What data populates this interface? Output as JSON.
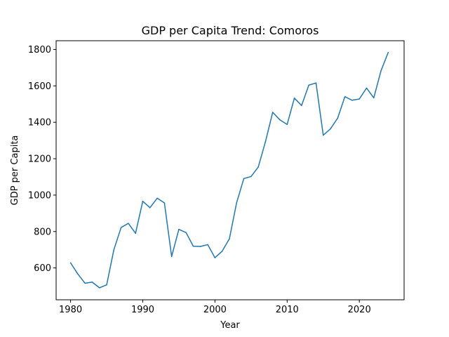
{
  "chart_data": {
    "type": "line",
    "title": "GDP per Capita Trend: Comoros",
    "xlabel": "Year",
    "ylabel": "GDP per Capita",
    "xlim": [
      1978,
      2026.2
    ],
    "ylim": [
      425,
      1848
    ],
    "xticks": [
      "1980",
      "1990",
      "2000",
      "2010",
      "2020"
    ],
    "yticks": [
      "600",
      "800",
      "1000",
      "1200",
      "1400",
      "1600",
      "1800"
    ],
    "grid": false,
    "legend": "none",
    "line_color": "#1f77b4",
    "series": [
      {
        "x": [
          1980,
          1981,
          1982,
          1983,
          1984,
          1985,
          1986,
          1987,
          1988,
          1989,
          1990,
          1991,
          1992,
          1993,
          1994,
          1995,
          1996,
          1997,
          1998,
          1999,
          2000,
          2001,
          2002,
          2003,
          2004,
          2005,
          2006,
          2007,
          2008,
          2009,
          2010,
          2011,
          2012,
          2013,
          2014,
          2015,
          2016,
          2017,
          2018,
          2019,
          2020,
          2021,
          2022,
          2023,
          2024
        ],
        "values": [
          628,
          567,
          516,
          522,
          491,
          507,
          700,
          822,
          845,
          790,
          966,
          931,
          983,
          957,
          663,
          812,
          794,
          719,
          718,
          728,
          656,
          692,
          760,
          958,
          1091,
          1102,
          1154,
          1294,
          1455,
          1413,
          1388,
          1533,
          1492,
          1604,
          1616,
          1329,
          1364,
          1423,
          1541,
          1521,
          1528,
          1588,
          1534,
          1683,
          1784
        ]
      }
    ]
  }
}
